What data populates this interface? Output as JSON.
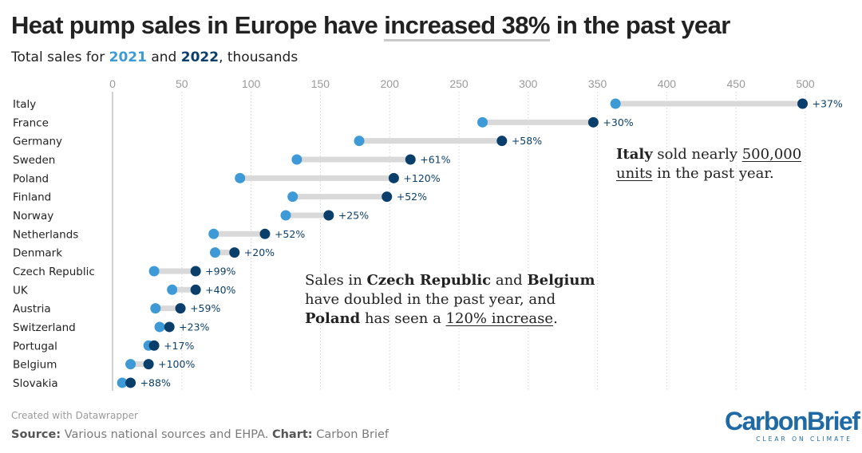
{
  "header": {
    "title_before": "Heat pump sales in Europe have ",
    "title_highlight": "increased 38%",
    "title_after": " in the past year",
    "subtitle_before": "Total sales for ",
    "subtitle_year1": "2021",
    "subtitle_and": " and ",
    "subtitle_year2": "2022",
    "subtitle_after": ", thousands"
  },
  "colors": {
    "year_2021": "#3d9ad6",
    "year_2022": "#0b3f6b",
    "connector": "#d9d9d9",
    "grid": "#d6d6d6"
  },
  "chart_data": {
    "type": "dot-range",
    "title": "Heat pump sales in Europe have increased 38% in the past year",
    "subtitle": "Total sales for 2021 and 2022, thousands",
    "xlim": [
      0,
      500
    ],
    "ticks": [
      0,
      50,
      100,
      150,
      200,
      250,
      300,
      350,
      400,
      450,
      500
    ],
    "grid": true,
    "categories": [
      "Italy",
      "France",
      "Germany",
      "Sweden",
      "Poland",
      "Finland",
      "Norway",
      "Netherlands",
      "Denmark",
      "Czech Republic",
      "UK",
      "Austria",
      "Switzerland",
      "Portugal",
      "Belgium",
      "Slovakia"
    ],
    "series": [
      {
        "name": "2021",
        "values": [
          363,
          267,
          178,
          133,
          92,
          130,
          125,
          73,
          74,
          30,
          43,
          31,
          34,
          26,
          13,
          7
        ]
      },
      {
        "name": "2022",
        "values": [
          498,
          347,
          281,
          215,
          203,
          198,
          156,
          110,
          88,
          60,
          60,
          49,
          41,
          30,
          26,
          13
        ]
      }
    ],
    "labels": [
      "+37%",
      "+30%",
      "+58%",
      "+61%",
      "+120%",
      "+52%",
      "+25%",
      "+52%",
      "+20%",
      "+99%",
      "+40%",
      "+59%",
      "+23%",
      "+17%",
      "+100%",
      "+88%"
    ]
  },
  "annotations": {
    "italy": {
      "bold": "Italy",
      "text1": " sold nearly ",
      "underline1": "500,000",
      "underline2": "units",
      "text2": " in the past year."
    },
    "czech": {
      "t1": "Sales in ",
      "b1": "Czech Republic",
      "t2": " and ",
      "b2": "Belgium",
      "t3": " have doubled in the past year, and ",
      "b3": "Poland",
      "t4": " has seen a ",
      "u1": "120% increase",
      "t5": "."
    }
  },
  "footer": {
    "credit": "Created with Datawrapper",
    "source_label": "Source:",
    "source_text": " Various national sources and EHPA. ",
    "chart_label": "Chart:",
    "chart_text": " Carbon Brief"
  },
  "logo": {
    "name": "CarbonBrief",
    "tagline": "CLEAR ON CLIMATE"
  }
}
